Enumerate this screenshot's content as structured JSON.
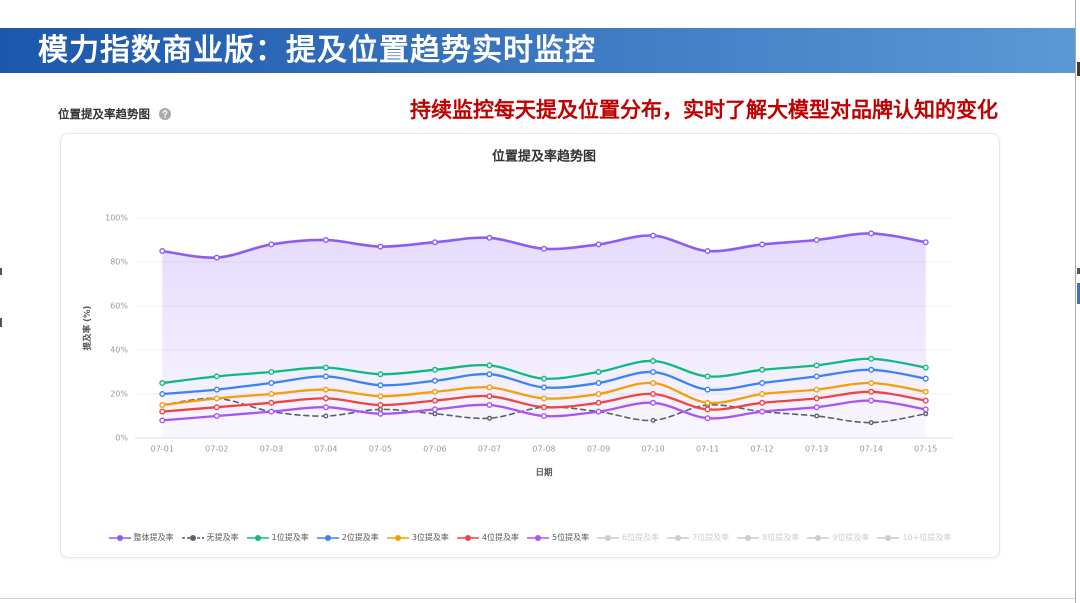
{
  "banner": {
    "title": "模力指数商业版：提及位置趋势实时监控"
  },
  "section": {
    "title": "位置提及率趋势图",
    "help_icon": "question-circle-icon"
  },
  "callout": {
    "text": "持续监控每天提及位置分布，实时了解大模型对品牌认知的变化"
  },
  "colors": {
    "banner_start": "#1b57ab",
    "banner_end": "#5b98d6",
    "callout": "#c00000",
    "legend_inactive": "#cccccc"
  },
  "chart_data": {
    "type": "line",
    "title": "位置提及率趋势图",
    "xlabel": "日期",
    "ylabel": "提及率 (%)",
    "categories": [
      "07-01",
      "07-02",
      "07-03",
      "07-04",
      "07-05",
      "07-06",
      "07-07",
      "07-08",
      "07-09",
      "07-10",
      "07-11",
      "07-12",
      "07-13",
      "07-14",
      "07-15"
    ],
    "ylim": [
      0,
      100
    ],
    "yticks": [
      0,
      20,
      40,
      60,
      80,
      100
    ],
    "ytick_labels": [
      "0%",
      "20%",
      "40%",
      "60%",
      "80%",
      "100%"
    ],
    "grid": true,
    "smooth": true,
    "legend_position": "bottom",
    "series": [
      {
        "name": "整体提及率",
        "color": "#8b5cf6",
        "area": true,
        "visible": true,
        "values": [
          85,
          82,
          88,
          90,
          87,
          89,
          91,
          86,
          88,
          92,
          85,
          88,
          90,
          93,
          89
        ]
      },
      {
        "name": "无提及率",
        "color": "#5b6170",
        "dashed": true,
        "visible": true,
        "values": [
          15,
          18,
          12,
          10,
          13,
          11,
          9,
          14,
          12,
          8,
          15,
          12,
          10,
          7,
          11
        ]
      },
      {
        "name": "1位提及率",
        "color": "#10b981",
        "visible": true,
        "values": [
          25,
          28,
          30,
          32,
          29,
          31,
          33,
          27,
          30,
          35,
          28,
          31,
          33,
          36,
          32
        ]
      },
      {
        "name": "2位提及率",
        "color": "#3b82f6",
        "visible": true,
        "values": [
          20,
          22,
          25,
          28,
          24,
          26,
          29,
          23,
          25,
          30,
          22,
          25,
          28,
          31,
          27
        ]
      },
      {
        "name": "3位提及率",
        "color": "#f59e0b",
        "visible": true,
        "values": [
          15,
          18,
          20,
          22,
          19,
          21,
          23,
          18,
          20,
          25,
          16,
          20,
          22,
          25,
          21
        ]
      },
      {
        "name": "4位提及率",
        "color": "#ef4444",
        "visible": true,
        "values": [
          12,
          14,
          16,
          18,
          15,
          17,
          19,
          14,
          16,
          20,
          13,
          16,
          18,
          21,
          17
        ]
      },
      {
        "name": "5位提及率",
        "color": "#a855f7",
        "visible": true,
        "values": [
          8,
          10,
          12,
          14,
          11,
          13,
          15,
          10,
          12,
          16,
          9,
          12,
          14,
          17,
          13
        ]
      },
      {
        "name": "6位提及率",
        "visible": false
      },
      {
        "name": "7位提及率",
        "visible": false
      },
      {
        "name": "8位提及率",
        "visible": false
      },
      {
        "name": "9位提及率",
        "visible": false
      },
      {
        "name": "10+位提及率",
        "visible": false
      }
    ]
  }
}
